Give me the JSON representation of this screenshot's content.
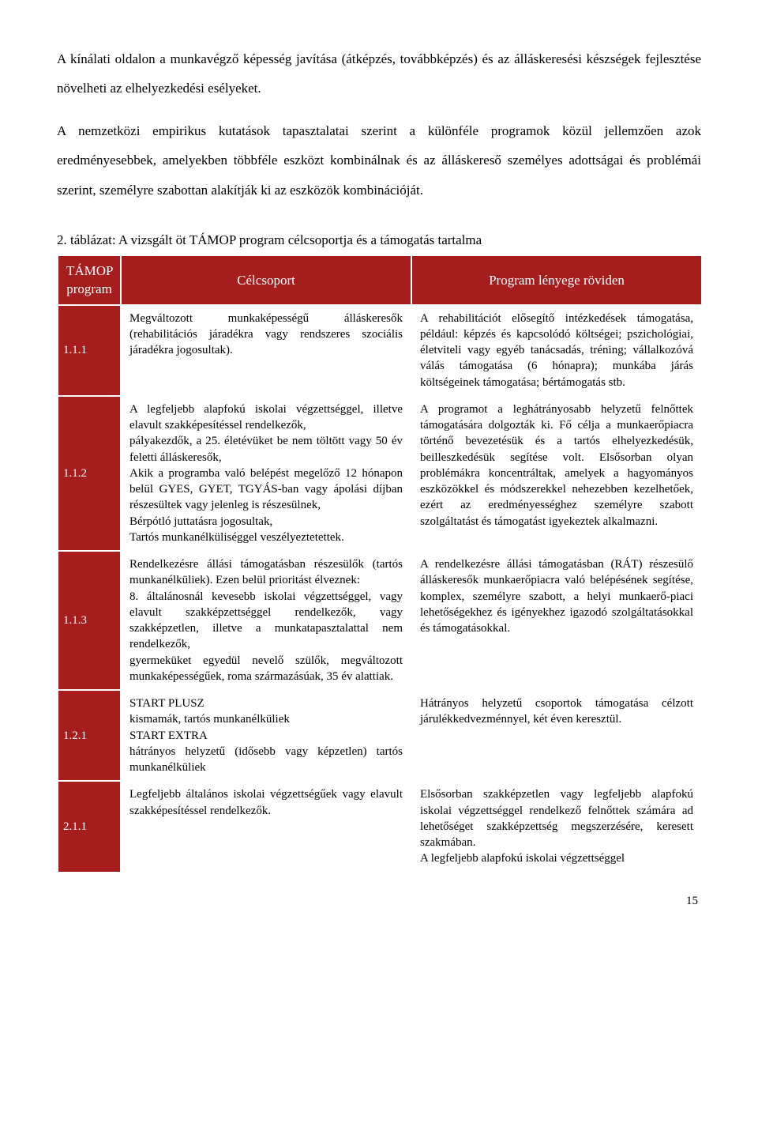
{
  "intro": {
    "p1": "A kínálati oldalon a munkavégző képesség javítása (átképzés, továbbképzés) és az álláskeresési készségek fejlesztése növelheti az elhelyezkedési esélyeket.",
    "p2": "A nemzetközi empirikus kutatások tapasztalatai szerint a különféle programok közül jellemzően azok eredményesebbek, amelyekben többféle eszközt kombinálnak és az álláskereső személyes adottságai és problémái szerint, személyre szabottan alakítják ki az eszközök kombinációját."
  },
  "table": {
    "caption": "2. táblázat: A vizsgált öt TÁMOP program célcsoportja és a támogatás tartalma",
    "headers": {
      "program": "TÁMOP program",
      "celcsoport": "Célcsoport",
      "lenyeg": "Program lényege röviden"
    },
    "rows": [
      {
        "code": "1.1.1",
        "cel": "Megváltozott munkaképességű álláskeresők (rehabilitációs járadékra vagy rendszeres szociális járadékra jogosultak).",
        "lenyeg": "A rehabilitációt elősegítő intézkedések támogatása, például: képzés és kapcsolódó költségei; pszichológiai, életviteli vagy egyéb tanácsadás, tréning; vállalkozóvá válás támogatása (6 hónapra); munkába járás költségeinek támogatása; bértámogatás stb."
      },
      {
        "code": "1.1.2",
        "cel": "A legfeljebb alapfokú iskolai végzettséggel, illetve elavult szakképesítéssel rendelkezők,\npályakezdők, a 25. életévüket be nem töltött vagy 50 év feletti álláskeresők,\nAkik a programba való belépést megelőző 12 hónapon belül GYES, GYET, TGYÁS-ban vagy ápolási díjban részesültek vagy jelenleg is részesülnek,\nBérpótló juttatásra jogosultak,\nTartós munkanélküliséggel veszélyeztetettek.",
        "lenyeg": "A programot a leghátrányosabb helyzetű felnőttek támogatására dolgozták ki. Fő célja a munkaerőpiacra történő bevezetésük és a tartós elhelyezkedésük, beilleszkedésük segítése volt. Elsősorban olyan problémákra koncentráltak, amelyek a hagyományos eszközökkel és módszerekkel nehezebben kezelhetőek, ezért az eredményességhez személyre szabott szolgáltatást és támogatást igyekeztek alkalmazni."
      },
      {
        "code": "1.1.3",
        "cel": "Rendelkezésre állási támogatásban részesülők (tartós munkanélküliek). Ezen belül prioritást élveznek:\n8. általánosnál kevesebb iskolai végzettséggel, vagy elavult szakképzettséggel rendelkezők, vagy szakképzetlen, illetve a munkatapasztalattal nem rendelkezők,\ngyermeküket egyedül nevelő szülők, megváltozott munkaképességűek, roma származásúak, 35 év alattiak.",
        "lenyeg": "A rendelkezésre állási támogatásban (RÁT) részesülő álláskeresők munkaerőpiacra való belépésének segítése, komplex, személyre szabott, a helyi munkaerő-piaci lehetőségekhez és igényekhez igazodó szolgáltatásokkal és támogatásokkal."
      },
      {
        "code": "1.2.1",
        "cel": "START PLUSZ\nkismamák, tartós munkanélküliek\nSTART EXTRA\nhátrányos helyzetű (idősebb vagy képzetlen) tartós munkanélküliek",
        "lenyeg": "Hátrányos helyzetű csoportok támogatása célzott járulékkedvezménnyel, két éven keresztül."
      },
      {
        "code": "2.1.1",
        "cel": "Legfeljebb általános iskolai végzettségűek vagy elavult szakképesítéssel rendelkezők.",
        "lenyeg": "Elsősorban szakképzetlen vagy legfeljebb alapfokú iskolai végzettséggel rendelkező felnőttek számára ad lehetőséget szakképzettség megszerzésére, keresett szakmában.\nA legfeljebb alapfokú iskolai végzettséggel"
      }
    ]
  },
  "page_number": "15",
  "colors": {
    "header_bg": "#a61d1d",
    "header_fg": "#ffffff",
    "body_fg": "#000000",
    "body_bg": "#ffffff"
  }
}
